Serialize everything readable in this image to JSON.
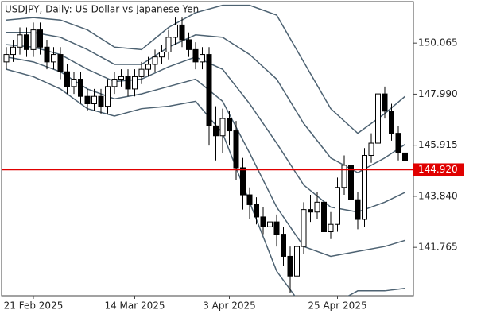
{
  "chart_data": {
    "type": "candlestick",
    "title": "USDJPY, Daily:  US Dollar vs Japanese Yen",
    "categories": [
      null,
      null,
      null,
      null,
      "21 Feb 2025",
      null,
      null,
      null,
      null,
      null,
      null,
      null,
      null,
      null,
      null,
      null,
      null,
      null,
      null,
      "14 Mar 2025",
      null,
      null,
      null,
      null,
      null,
      null,
      null,
      null,
      null,
      null,
      null,
      null,
      null,
      "3 Apr 2025",
      null,
      null,
      null,
      null,
      null,
      null,
      null,
      null,
      null,
      null,
      null,
      null,
      null,
      null,
      null,
      "25 Apr 2025",
      null,
      null,
      null,
      null,
      null,
      null,
      null,
      null,
      null,
      null
    ],
    "open": [
      149.3,
      149.6,
      149.9,
      150.4,
      149.8,
      150.6,
      149.9,
      149.3,
      149.6,
      148.9,
      148.3,
      148.6,
      147.9,
      147.6,
      147.9,
      147.5,
      148.3,
      148.6,
      148.7,
      148.2,
      148.7,
      149.0,
      149.2,
      149.5,
      149.7,
      150.3,
      150.8,
      150.2,
      149.8,
      149.3,
      149.6,
      146.7,
      146.3,
      147.0,
      146.5,
      145.0,
      143.9,
      143.5,
      143.0,
      142.6,
      142.8,
      142.3,
      141.4,
      140.6,
      141.8,
      143.3,
      143.2,
      143.6,
      142.4,
      142.7,
      144.2,
      145.1,
      143.7,
      142.9,
      145.5,
      146.0,
      148.0,
      147.3,
      146.4,
      145.6
    ],
    "high": [
      149.9,
      150.2,
      150.7,
      150.7,
      150.9,
      150.9,
      150.2,
      149.9,
      149.9,
      149.2,
      148.9,
      148.9,
      148.2,
      148.2,
      148.2,
      148.6,
      148.9,
      149.0,
      149.0,
      149.0,
      149.3,
      149.5,
      149.8,
      150.0,
      150.6,
      151.1,
      151.1,
      150.5,
      150.1,
      149.9,
      149.9,
      147.5,
      147.4,
      147.3,
      146.9,
      145.4,
      144.2,
      143.8,
      143.4,
      143.3,
      143.1,
      142.6,
      141.8,
      142.1,
      143.6,
      143.9,
      144.0,
      143.9,
      143.2,
      144.6,
      145.5,
      145.4,
      144.0,
      145.8,
      146.4,
      148.4,
      148.3,
      147.6,
      146.7,
      145.8
    ],
    "low": [
      149.0,
      149.3,
      149.6,
      149.5,
      149.5,
      149.6,
      149.0,
      149.0,
      148.6,
      148.0,
      148.0,
      147.6,
      147.3,
      147.3,
      147.2,
      147.2,
      148.0,
      148.3,
      147.9,
      147.9,
      148.4,
      148.7,
      148.9,
      149.2,
      149.4,
      150.0,
      149.9,
      149.5,
      149.0,
      149.0,
      145.9,
      145.3,
      145.6,
      145.9,
      144.5,
      143.3,
      142.9,
      142.7,
      142.3,
      142.2,
      141.8,
      141.0,
      139.9,
      140.3,
      141.5,
      142.8,
      142.9,
      142.1,
      142.1,
      142.4,
      143.9,
      143.3,
      142.5,
      142.6,
      145.2,
      145.7,
      147.0,
      146.1,
      145.3,
      145.0
    ],
    "close": [
      149.6,
      149.9,
      150.4,
      149.8,
      150.6,
      149.9,
      149.3,
      149.6,
      148.9,
      148.3,
      148.6,
      147.9,
      147.6,
      147.9,
      147.5,
      148.3,
      148.6,
      148.7,
      148.2,
      148.7,
      149.0,
      149.2,
      149.5,
      149.7,
      150.3,
      150.8,
      150.2,
      149.8,
      149.3,
      149.6,
      146.7,
      146.3,
      147.0,
      146.5,
      145.0,
      143.9,
      143.5,
      143.0,
      142.6,
      142.8,
      142.3,
      141.4,
      140.6,
      141.8,
      143.3,
      143.2,
      143.6,
      142.4,
      142.7,
      144.2,
      145.1,
      143.7,
      142.9,
      145.5,
      146.0,
      148.0,
      147.3,
      146.4,
      145.6,
      145.3
    ],
    "bands": [
      {
        "color": "#4d6272",
        "x": [
          0,
          4,
          8,
          12,
          16,
          20,
          24,
          28,
          32,
          36,
          40,
          44,
          48,
          52,
          56,
          59
        ],
        "values": [
          151.0,
          151.1,
          151.0,
          150.6,
          149.9,
          149.8,
          150.7,
          151.3,
          151.6,
          151.6,
          151.2,
          149.3,
          147.4,
          146.4,
          147.2,
          147.9
        ]
      },
      {
        "color": "#4d6272",
        "x": [
          0,
          4,
          8,
          12,
          16,
          20,
          24,
          28,
          32,
          36,
          40,
          44,
          48,
          52,
          56,
          59
        ],
        "values": [
          150.5,
          150.5,
          150.3,
          149.8,
          149.2,
          149.2,
          149.9,
          150.4,
          150.3,
          149.6,
          148.6,
          146.8,
          145.4,
          144.8,
          145.4,
          145.95
        ]
      },
      {
        "color": "#4d6272",
        "x": [
          0,
          4,
          8,
          12,
          16,
          20,
          24,
          28,
          32,
          36,
          40,
          44,
          48,
          52,
          56,
          59
        ],
        "values": [
          150.0,
          149.9,
          149.6,
          149.0,
          148.5,
          148.6,
          149.1,
          149.5,
          149.0,
          147.6,
          146.0,
          144.3,
          143.4,
          143.2,
          143.6,
          144.0
        ]
      },
      {
        "color": "#4d6272",
        "x": [
          0,
          4,
          8,
          12,
          16,
          20,
          24,
          28,
          32,
          36,
          40,
          44,
          48,
          52,
          56,
          59
        ],
        "values": [
          149.5,
          149.3,
          148.9,
          148.2,
          147.8,
          148.0,
          148.3,
          148.6,
          147.7,
          145.6,
          143.4,
          141.8,
          141.4,
          141.6,
          141.8,
          142.05
        ]
      },
      {
        "color": "#4d6272",
        "x": [
          0,
          4,
          8,
          12,
          16,
          20,
          24,
          28,
          32,
          36,
          40,
          44,
          48,
          52,
          56,
          59
        ],
        "values": [
          149.0,
          148.7,
          148.2,
          147.4,
          147.1,
          147.4,
          147.5,
          147.7,
          146.4,
          143.6,
          140.8,
          139.3,
          139.4,
          140.0,
          140.0,
          140.1
        ]
      }
    ],
    "ylim": [
      139.8,
      151.75
    ],
    "yticks": [
      150.065,
      {
        "value": 147.99,
        "label": "147.990"
      },
      145.915,
      {
        "value": 143.84,
        "label": "143.840"
      },
      141.765
    ],
    "price_line": {
      "value": 144.92,
      "label": "144.920",
      "color": "#e00000"
    }
  }
}
